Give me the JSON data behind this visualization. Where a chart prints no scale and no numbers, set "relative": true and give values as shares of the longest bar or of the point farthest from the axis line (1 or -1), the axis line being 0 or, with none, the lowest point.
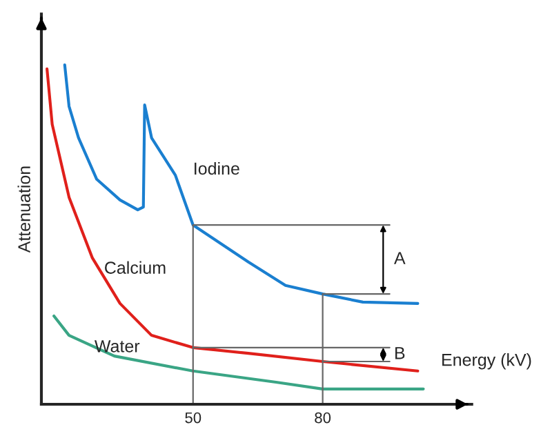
{
  "chart_data": {
    "type": "line",
    "relative": true,
    "xlabel": "Energy (kV)",
    "ylabel": "Attenuation",
    "xlim": [
      14.9,
      114.5
    ],
    "xticks": [
      50,
      80
    ],
    "grid": false,
    "legend": false,
    "marker": "none",
    "line_style": "solid",
    "series": [
      {
        "name": "Iodine",
        "color": "#1a7fd0",
        "x": [
          20.3,
          21.3,
          23.5,
          27.7,
          33.1,
          37.2,
          38.5,
          38.8,
          40.4,
          45.9,
          50,
          62.8,
          71.4,
          80,
          89.3,
          102
        ],
        "values": [
          1.0,
          0.878,
          0.785,
          0.663,
          0.602,
          0.573,
          0.581,
          0.882,
          0.785,
          0.675,
          0.528,
          0.419,
          0.35,
          0.325,
          0.301,
          0.297
        ]
      },
      {
        "name": "Calcium",
        "color": "#e0201b",
        "x": [
          16.2,
          17.4,
          21.3,
          26.7,
          33.1,
          40.4,
          50,
          62.8,
          80,
          102
        ],
        "values": [
          0.988,
          0.825,
          0.61,
          0.431,
          0.297,
          0.203,
          0.167,
          0.15,
          0.126,
          0.098
        ]
      },
      {
        "name": "Water",
        "color": "#3aa585",
        "x": [
          17.8,
          21.3,
          31.8,
          50,
          69.2,
          80,
          103.3
        ],
        "values": [
          0.26,
          0.203,
          0.142,
          0.098,
          0.065,
          0.045,
          0.045
        ]
      }
    ],
    "ref_lines": [
      {
        "axis": "x",
        "value": 50
      },
      {
        "axis": "x",
        "value": 80
      },
      {
        "axis": "y",
        "value": 0.528
      },
      {
        "axis": "y",
        "value": 0.325
      },
      {
        "axis": "y",
        "value": 0.167
      },
      {
        "axis": "y",
        "value": 0.126
      }
    ],
    "annotations": [
      "A",
      "B"
    ]
  }
}
